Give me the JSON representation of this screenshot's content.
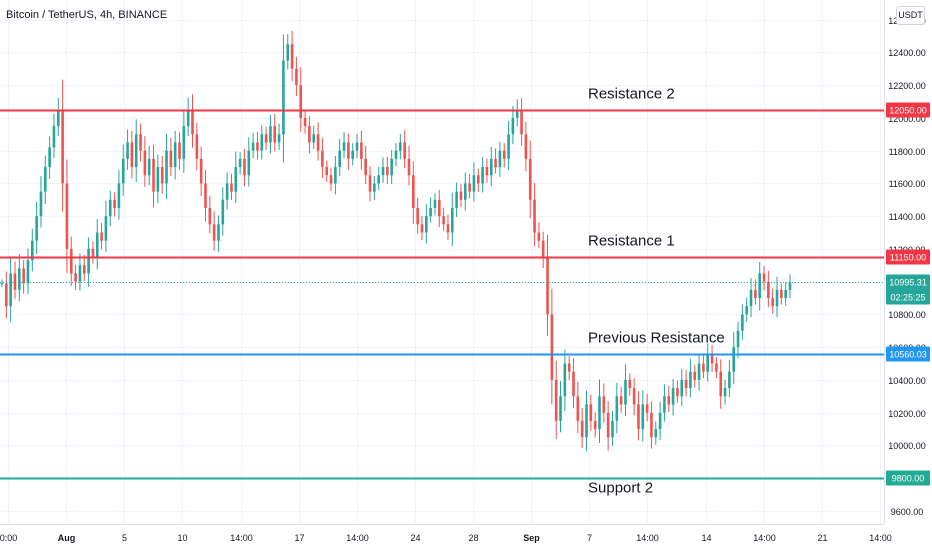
{
  "header": {
    "title": "Bitcoin / TetherUS, 4h, BINANCE"
  },
  "axis": {
    "unit_button": "USDT"
  },
  "chart_data": {
    "type": "candlestick",
    "ylim": [
      9520,
      12720
    ],
    "y_ticks": [
      9600,
      9800,
      10000,
      10200,
      10400,
      10600,
      10800,
      11000,
      11200,
      11400,
      11600,
      11800,
      12000,
      12200,
      12400,
      12600
    ],
    "y_tick_labels": [
      "9600.00",
      "9800.00",
      "10000.00",
      "10200.00",
      "10400.00",
      "10600.00",
      "10800.00",
      "11000.00",
      "11200.00",
      "11400.00",
      "11600.00",
      "11800.00",
      "12000.00",
      "12200.00",
      "12400.00",
      "12600.00"
    ],
    "x_tick_labels": [
      "0:00",
      "Aug",
      "5",
      "10",
      "14:00",
      "17",
      "14:00",
      "24",
      "28",
      "Sep",
      "7",
      "14:00",
      "14",
      "14:00",
      "21",
      "14:00"
    ],
    "levels": [
      {
        "label": "Resistance 2",
        "value": 12050,
        "tag": "12050.00",
        "color": "#f23645"
      },
      {
        "label": "Resistance 1",
        "value": 11150,
        "tag": "11150.00",
        "color": "#f23645"
      },
      {
        "label": "Previous Resistance",
        "value": 10560,
        "tag": "10560.03",
        "color": "#2196f3"
      },
      {
        "label": "Support 2",
        "value": 9800,
        "tag": "9800.00",
        "color": "#22ab94"
      }
    ],
    "last_price": {
      "value": 10995.31,
      "label": "10995.31",
      "countdown": "02:25:25",
      "color": "#26a69a"
    },
    "series_close": [
      10990,
      10850,
      11050,
      10950,
      11080,
      10990,
      11130,
      11250,
      11400,
      11550,
      11700,
      11820,
      11950,
      12050,
      11600,
      11200,
      11050,
      11000,
      11100,
      11050,
      11200,
      11150,
      11300,
      11250,
      11400,
      11500,
      11450,
      11600,
      11750,
      11850,
      11700,
      11900,
      11800,
      11650,
      11750,
      11550,
      11700,
      11600,
      11800,
      11700,
      11850,
      11750,
      11950,
      12050,
      11900,
      11750,
      11600,
      11450,
      11350,
      11250,
      11350,
      11500,
      11600,
      11550,
      11700,
      11750,
      11650,
      11800,
      11850,
      11800,
      11900,
      11850,
      11950,
      11850,
      11900,
      12350,
      12450,
      12300,
      12200,
      12000,
      11950,
      11850,
      11900,
      11800,
      11700,
      11650,
      11600,
      11700,
      11800,
      11850,
      11750,
      11800,
      11850,
      11750,
      11650,
      11550,
      11600,
      11650,
      11700,
      11650,
      11750,
      11800,
      11850,
      11750,
      11650,
      11450,
      11350,
      11300,
      11400,
      11450,
      11500,
      11400,
      11350,
      11300,
      11450,
      11550,
      11500,
      11600,
      11550,
      11650,
      11600,
      11700,
      11650,
      11750,
      11700,
      11800,
      11750,
      11900,
      12000,
      12050,
      11900,
      11750,
      11500,
      11300,
      11250,
      11150,
      10800,
      10400,
      10150,
      10300,
      10500,
      10450,
      10300,
      10150,
      10050,
      10250,
      10150,
      10100,
      10300,
      10200,
      10050,
      10150,
      10300,
      10250,
      10400,
      10350,
      10250,
      10100,
      10250,
      10200,
      10050,
      10100,
      10200,
      10300,
      10250,
      10350,
      10300,
      10400,
      10350,
      10450,
      10400,
      10500,
      10450,
      10550,
      10500,
      10450,
      10300,
      10350,
      10450,
      10600,
      10700,
      10800,
      10850,
      10950,
      10900,
      11050,
      11000,
      10900,
      10850,
      10950,
      10900,
      10950,
      10995
    ]
  }
}
